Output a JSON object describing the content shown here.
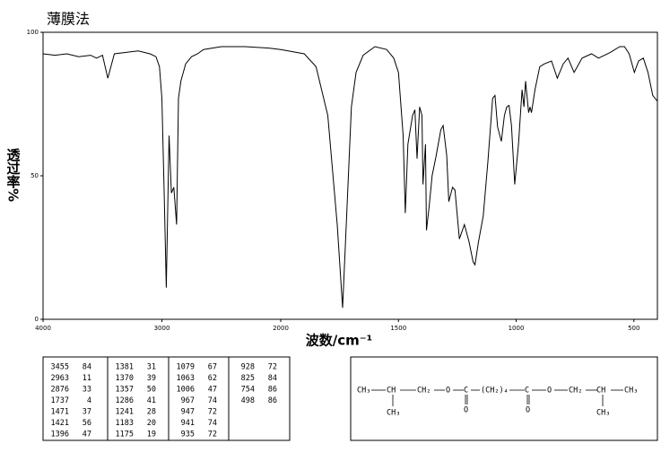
{
  "chart_data": {
    "type": "line",
    "title": "薄膜法",
    "xlabel": "波数/cm⁻¹",
    "ylabel": "透过率%",
    "xlim": [
      4000,
      400
    ],
    "xscale_break": 2000,
    "ylim": [
      0,
      100
    ],
    "xticks": [
      4000,
      3000,
      2000,
      1500,
      1000,
      500
    ],
    "yticks": [
      0,
      50,
      100
    ],
    "color": "#000000",
    "x": [
      4000,
      3900,
      3800,
      3700,
      3600,
      3550,
      3500,
      3455,
      3400,
      3300,
      3200,
      3100,
      3050,
      3020,
      3000,
      2980,
      2963,
      2940,
      2920,
      2900,
      2876,
      2860,
      2840,
      2800,
      2750,
      2700,
      2650,
      2500,
      2300,
      2100,
      2000,
      1900,
      1850,
      1800,
      1760,
      1737,
      1720,
      1700,
      1680,
      1650,
      1600,
      1550,
      1520,
      1500,
      1480,
      1471,
      1460,
      1440,
      1430,
      1421,
      1410,
      1400,
      1396,
      1385,
      1381,
      1370,
      1357,
      1340,
      1320,
      1310,
      1295,
      1286,
      1270,
      1260,
      1241,
      1220,
      1200,
      1183,
      1175,
      1160,
      1140,
      1120,
      1100,
      1090,
      1079,
      1063,
      1050,
      1040,
      1030,
      1020,
      1006,
      990,
      975,
      967,
      960,
      947,
      941,
      935,
      920,
      900,
      880,
      850,
      825,
      800,
      780,
      754,
      720,
      680,
      650,
      600,
      560,
      540,
      520,
      498,
      480,
      460,
      440,
      420,
      400
    ],
    "values": [
      92.5,
      92,
      92.5,
      91.5,
      92,
      91,
      92,
      84,
      92.5,
      93,
      93.5,
      92.5,
      91.5,
      88,
      77,
      42,
      11,
      64,
      44,
      46,
      33,
      77,
      83,
      89,
      91.5,
      92.5,
      94,
      95,
      95,
      94.5,
      94,
      92.5,
      88,
      71,
      33,
      4,
      36,
      74,
      86,
      92,
      95,
      94,
      91,
      86,
      64,
      37,
      61,
      71,
      73,
      56,
      74,
      71,
      47,
      61,
      31,
      39,
      50,
      57,
      66,
      67.5,
      57,
      41,
      46,
      45,
      28,
      33,
      27,
      20,
      19,
      27,
      36,
      55,
      77,
      78,
      67,
      62,
      71,
      74,
      74.5,
      67.5,
      47,
      61,
      80,
      74,
      83,
      72,
      74,
      72,
      80,
      88,
      89,
      90,
      84,
      89,
      91,
      86,
      91,
      92.5,
      91,
      93,
      95,
      95,
      92.5,
      86,
      90,
      91,
      86,
      78,
      76
    ]
  },
  "peak_table": [
    [
      [
        3455,
        84
      ],
      [
        2963,
        11
      ],
      [
        2876,
        33
      ],
      [
        1737,
        4
      ],
      [
        1471,
        37
      ],
      [
        1421,
        56
      ],
      [
        1396,
        47
      ]
    ],
    [
      [
        1381,
        31
      ],
      [
        1370,
        39
      ],
      [
        1357,
        50
      ],
      [
        1286,
        41
      ],
      [
        1241,
        28
      ],
      [
        1183,
        20
      ],
      [
        1175,
        19
      ]
    ],
    [
      [
        1079,
        67
      ],
      [
        1063,
        62
      ],
      [
        1006,
        47
      ],
      [
        967,
        74
      ],
      [
        947,
        72
      ],
      [
        941,
        74
      ],
      [
        935,
        72
      ]
    ],
    [
      [
        928,
        72
      ],
      [
        825,
        84
      ],
      [
        754,
        86
      ],
      [
        498,
        86
      ]
    ]
  ],
  "structure": {
    "chain": [
      "CH₃",
      "CH",
      "CH₂",
      "O",
      "C",
      "(CH₂)₄",
      "C",
      "O",
      "CH₂",
      "CH",
      "CH₃"
    ],
    "branches": [
      "CH₃",
      "O",
      "O",
      "CH₃"
    ]
  }
}
